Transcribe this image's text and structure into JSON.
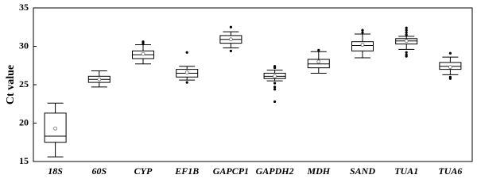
{
  "chart_data": {
    "type": "box",
    "y_label": "Ct value",
    "categories": [
      "18S",
      "60S",
      "CYP",
      "EF1B",
      "GAPCP1",
      "GAPDH2",
      "MDH",
      "SAND",
      "TUA1",
      "TUA6"
    ],
    "boxes": [
      {
        "whisker_low": 15.6,
        "q1": 17.5,
        "median": 18.3,
        "q3": 21.3,
        "whisker_high": 22.6,
        "mean": 19.3,
        "outliers": []
      },
      {
        "whisker_low": 24.7,
        "q1": 25.3,
        "median": 25.7,
        "q3": 26.1,
        "whisker_high": 26.8,
        "mean": 25.7,
        "outliers": []
      },
      {
        "whisker_low": 27.7,
        "q1": 28.4,
        "median": 28.9,
        "q3": 29.4,
        "whisker_high": 30.2,
        "mean": 29.0,
        "outliers": [
          30.6,
          30.4
        ]
      },
      {
        "whisker_low": 25.6,
        "q1": 26.0,
        "median": 26.5,
        "q3": 27.0,
        "whisker_high": 27.4,
        "mean": 26.6,
        "outliers": [
          29.2,
          25.3
        ]
      },
      {
        "whisker_low": 29.8,
        "q1": 30.4,
        "median": 30.9,
        "q3": 31.4,
        "whisker_high": 31.9,
        "mean": 30.9,
        "outliers": [
          32.5,
          29.4
        ]
      },
      {
        "whisker_low": 25.5,
        "q1": 25.8,
        "median": 26.1,
        "q3": 26.5,
        "whisker_high": 26.9,
        "mean": 26.1,
        "outliers": [
          27.4,
          27.2,
          25.2,
          24.7,
          24.4,
          22.8
        ]
      },
      {
        "whisker_low": 26.5,
        "q1": 27.2,
        "median": 27.7,
        "q3": 28.3,
        "whisker_high": 29.3,
        "mean": 28.0,
        "outliers": [
          29.5
        ]
      },
      {
        "whisker_low": 28.5,
        "q1": 29.4,
        "median": 30.1,
        "q3": 30.6,
        "whisker_high": 31.6,
        "mean": 30.2,
        "outliers": [
          32.1,
          31.8
        ]
      },
      {
        "whisker_low": 29.6,
        "q1": 30.3,
        "median": 30.7,
        "q3": 31.0,
        "whisker_high": 31.3,
        "mean": 30.7,
        "outliers": [
          32.4,
          32.1,
          31.8,
          31.5,
          29.2,
          28.9,
          28.7
        ]
      },
      {
        "whisker_low": 26.3,
        "q1": 27.0,
        "median": 27.4,
        "q3": 27.9,
        "whisker_high": 28.6,
        "mean": 27.3,
        "outliers": [
          29.1,
          26.0,
          25.8
        ]
      }
    ],
    "color": "#000000",
    "ylim": [
      15,
      35
    ],
    "yticks": [
      15,
      20,
      25,
      30,
      35
    ]
  }
}
